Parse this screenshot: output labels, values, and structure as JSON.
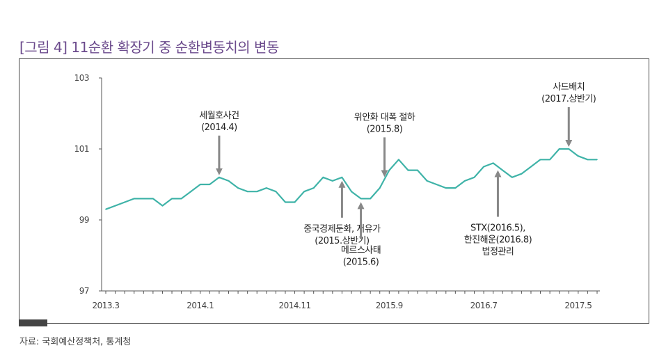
{
  "figure": {
    "title": "[그림 4] 11순환 확장기 중 순환변동치의 변동",
    "source": "자료: 국회예산정책처, 통계청"
  },
  "colors": {
    "title": "#6b4a8c",
    "line": "#3fb3a8",
    "arrow": "#888888",
    "axis": "#555555"
  },
  "chart_data": {
    "type": "line",
    "title": "",
    "xlabel": "",
    "ylabel": "",
    "ylim": [
      97,
      103
    ],
    "yticks": [
      "97",
      "99",
      "101",
      "103"
    ],
    "xticks": [
      {
        "label": "2013.3",
        "index": 0
      },
      {
        "label": "2014.1",
        "index": 10
      },
      {
        "label": "2014.11",
        "index": 20
      },
      {
        "label": "2015.9",
        "index": 30
      },
      {
        "label": "2016.7",
        "index": 40
      },
      {
        "label": "2017.5",
        "index": 50
      }
    ],
    "grid": false,
    "x": [
      "2013.3",
      "2013.4",
      "2013.5",
      "2013.6",
      "2013.7",
      "2013.8",
      "2013.9",
      "2013.10",
      "2013.11",
      "2013.12",
      "2014.1",
      "2014.2",
      "2014.3",
      "2014.4",
      "2014.5",
      "2014.6",
      "2014.7",
      "2014.8",
      "2014.9",
      "2014.10",
      "2014.11",
      "2014.12",
      "2015.1",
      "2015.2",
      "2015.3",
      "2015.4",
      "2015.5",
      "2015.6",
      "2015.7",
      "2015.8",
      "2015.9",
      "2015.10",
      "2015.11",
      "2015.12",
      "2016.1",
      "2016.2",
      "2016.3",
      "2016.4",
      "2016.5",
      "2016.6",
      "2016.7",
      "2016.8",
      "2016.9",
      "2016.10",
      "2016.11",
      "2016.12",
      "2017.1",
      "2017.2",
      "2017.3",
      "2017.4",
      "2017.5",
      "2017.6",
      "2017.7"
    ],
    "series": [
      {
        "values": [
          99.3,
          99.4,
          99.5,
          99.6,
          99.6,
          99.6,
          99.4,
          99.6,
          99.6,
          99.8,
          100.0,
          100.0,
          100.2,
          100.1,
          99.9,
          99.8,
          99.8,
          99.9,
          99.8,
          99.5,
          99.5,
          99.8,
          99.9,
          100.2,
          100.1,
          100.2,
          99.8,
          99.6,
          99.6,
          99.9,
          100.4,
          100.7,
          100.4,
          100.4,
          100.1,
          100.0,
          99.9,
          99.9,
          100.1,
          100.2,
          100.5,
          100.6,
          100.4,
          100.2,
          100.3,
          100.5,
          100.7,
          100.7,
          101.0,
          101.0,
          100.8,
          100.7,
          100.7
        ]
      }
    ],
    "annotations": [
      {
        "lines": [
          "세월호사건",
          "(2014.4)"
        ],
        "index": 12,
        "direction": "down"
      },
      {
        "lines": [
          "중국경제둔화, 저유가",
          "(2015.상반기)"
        ],
        "index": 25,
        "direction": "up"
      },
      {
        "lines": [
          "메르스사태",
          "(2015.6)"
        ],
        "index": 27,
        "direction": "up"
      },
      {
        "lines": [
          "위안화 대폭 절하",
          "(2015.8)"
        ],
        "index": 29.5,
        "direction": "down"
      },
      {
        "lines": [
          "STX(2016.5),",
          "한진해운(2016.8)",
          "법정관리"
        ],
        "index": 41.5,
        "direction": "up"
      },
      {
        "lines": [
          "사드배치",
          "(2017.상반기)"
        ],
        "index": 49,
        "direction": "down"
      }
    ]
  }
}
